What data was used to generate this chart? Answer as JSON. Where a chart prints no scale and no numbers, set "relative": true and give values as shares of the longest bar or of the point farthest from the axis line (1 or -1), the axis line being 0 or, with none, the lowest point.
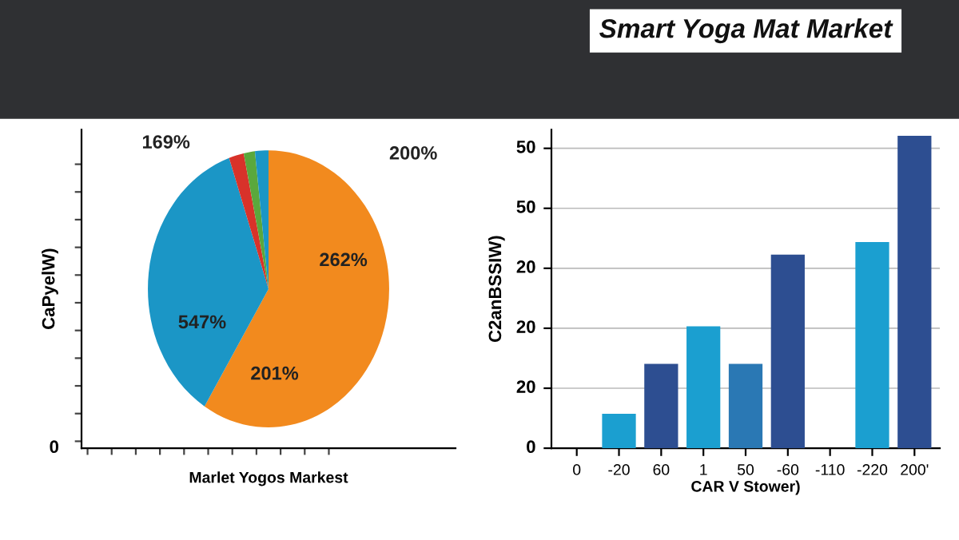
{
  "chart_data": [
    {
      "type": "pie",
      "xlabel": "Marlet Yogos Markest",
      "ylabel": "CaPyelW)",
      "categories": [
        null,
        null,
        null,
        null,
        null
      ],
      "values": [
        58.9,
        35.8,
        2.0,
        1.5,
        1.8
      ],
      "colors": [
        "#f28a1e",
        "#1b96c6",
        "#d8322a",
        "#5aa83c",
        "#1b96c6"
      ],
      "annotations": [
        "262%",
        "201%",
        "547%",
        "169%",
        "200%",
        "0"
      ]
    },
    {
      "type": "bar",
      "title": "Smart Yoga Mat Market",
      "xlabel": "CAR V Stower)",
      "ylabel": "C2anBSSIW)",
      "categories": [
        "0",
        "-20",
        "60",
        "1",
        "50",
        "-60",
        "-110",
        "-220",
        "200'"
      ],
      "values": [
        null,
        0.11,
        0.27,
        0.39,
        0.27,
        0.62,
        null,
        0.66,
        1.0
      ],
      "colors": [
        "#1b9fd0",
        "#1b9fd0",
        "#2d4e91",
        "#1b9fd0",
        "#2a78b4",
        "#2d4e91",
        "#1b9fd0",
        "#1b9fd0",
        "#2d4e91"
      ],
      "relative": true,
      "annotations": [
        "0",
        "20",
        "20",
        "20",
        "50",
        "50"
      ],
      "grid": "y"
    }
  ]
}
